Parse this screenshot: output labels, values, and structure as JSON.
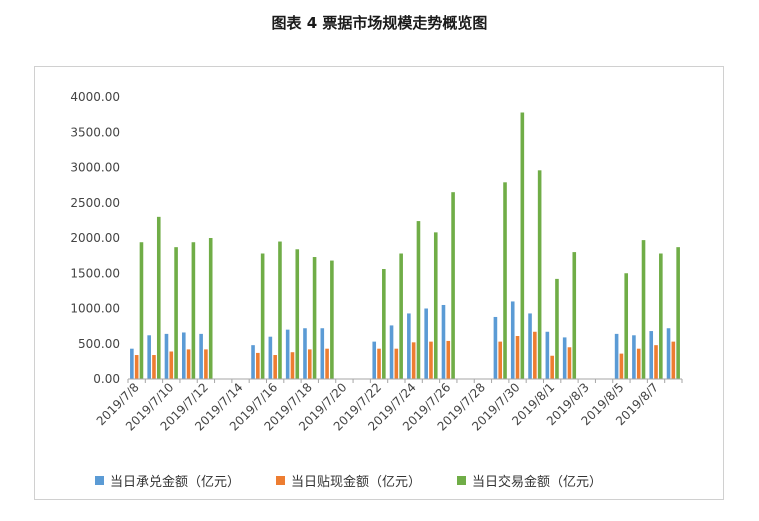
{
  "chart_data": {
    "type": "bar",
    "title": "图表 4  票据市场规模走势概览图",
    "xlabel": "",
    "ylabel": "",
    "ylim": [
      0,
      4000
    ],
    "y_ticks": [
      "0.00",
      "500.00",
      "1000.00",
      "1500.00",
      "2000.00",
      "2500.00",
      "3000.00",
      "3500.00",
      "4000.00"
    ],
    "grid": false,
    "legend_position": "bottom",
    "x_tick_labels": [
      "2019/7/8",
      "2019/7/10",
      "2019/7/12",
      "2019/7/14",
      "2019/7/16",
      "2019/7/18",
      "2019/7/20",
      "2019/7/22",
      "2019/7/24",
      "2019/7/26",
      "2019/7/28",
      "2019/7/30",
      "2019/8/1",
      "2019/8/3",
      "2019/8/5",
      "2019/8/7"
    ],
    "categories": [
      "2019/7/8",
      "2019/7/9",
      "2019/7/10",
      "2019/7/11",
      "2019/7/12",
      "2019/7/13",
      "2019/7/14",
      "2019/7/15",
      "2019/7/16",
      "2019/7/17",
      "2019/7/18",
      "2019/7/19",
      "2019/7/20",
      "2019/7/21",
      "2019/7/22",
      "2019/7/23",
      "2019/7/24",
      "2019/7/25",
      "2019/7/26",
      "2019/7/27",
      "2019/7/28",
      "2019/7/29",
      "2019/7/30",
      "2019/7/31",
      "2019/8/1",
      "2019/8/2",
      "2019/8/3",
      "2019/8/4",
      "2019/8/5",
      "2019/8/6",
      "2019/8/7",
      "2019/8/8"
    ],
    "series": [
      {
        "name": "当日承兑金额（亿元）",
        "color": "#5b9bd5",
        "values": [
          430,
          620,
          640,
          660,
          640,
          0,
          0,
          480,
          600,
          700,
          720,
          720,
          0,
          0,
          530,
          760,
          930,
          1000,
          1050,
          0,
          0,
          880,
          1100,
          930,
          670,
          590,
          0,
          0,
          640,
          620,
          680,
          720
        ]
      },
      {
        "name": "当日贴现金额（亿元）",
        "color": "#ed7d31",
        "values": [
          340,
          340,
          390,
          420,
          420,
          0,
          0,
          370,
          340,
          380,
          420,
          430,
          0,
          0,
          430,
          430,
          520,
          530,
          540,
          0,
          0,
          530,
          610,
          670,
          330,
          450,
          0,
          0,
          360,
          430,
          480,
          530
        ]
      },
      {
        "name": "当日交易金额（亿元）",
        "color": "#70ad47",
        "values": [
          1940,
          2300,
          1870,
          1940,
          2000,
          0,
          0,
          1780,
          1950,
          1840,
          1730,
          1680,
          0,
          0,
          1560,
          1780,
          2240,
          2080,
          2650,
          0,
          0,
          2790,
          3780,
          2960,
          1420,
          1800,
          0,
          0,
          1500,
          1970,
          1780,
          1870
        ]
      }
    ]
  }
}
